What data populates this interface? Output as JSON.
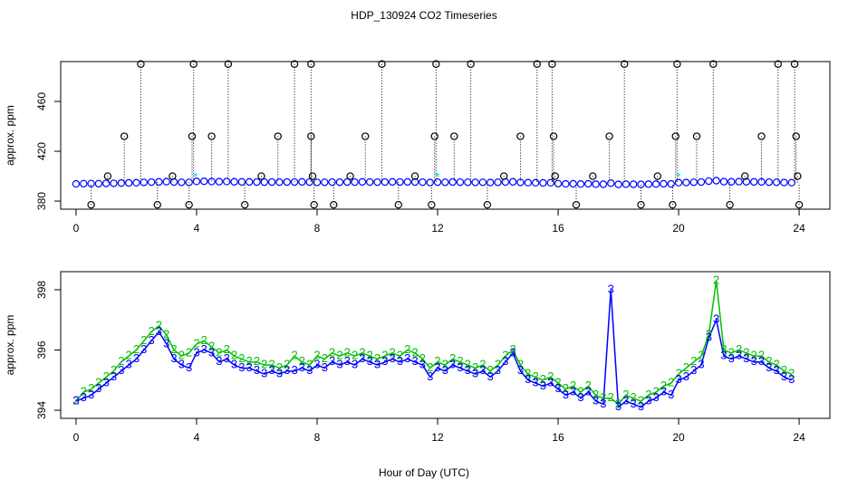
{
  "chart_data": [
    {
      "type": "scatter",
      "title": "HDP_130924  CO2 Timeseries",
      "y_label": "approx. ppm",
      "xlim": [
        -0.51,
        25.02
      ],
      "xticks": [
        0,
        4,
        8,
        12,
        16,
        20,
        24
      ],
      "ylim": [
        373.5,
        492
      ],
      "yticks": [
        380,
        420,
        460
      ],
      "series": [
        {
          "color": "#0000ff",
          "marker": "circle",
          "x": [
            0,
            0.25,
            0.5,
            0.75,
            1,
            1.25,
            1.5,
            1.75,
            2,
            2.25,
            2.5,
            2.75,
            3,
            3.25,
            3.5,
            3.75,
            4,
            4.25,
            4.5,
            4.75,
            5,
            5.25,
            5.5,
            5.75,
            6,
            6.25,
            6.5,
            6.75,
            7,
            7.25,
            7.5,
            7.75,
            8,
            8.25,
            8.5,
            8.75,
            9,
            9.25,
            9.5,
            9.75,
            10,
            10.25,
            10.5,
            10.75,
            11,
            11.25,
            11.5,
            11.75,
            12,
            12.25,
            12.5,
            12.75,
            13,
            13.25,
            13.5,
            13.75,
            14,
            14.25,
            14.5,
            14.75,
            15,
            15.25,
            15.5,
            15.75,
            16,
            16.25,
            16.5,
            16.75,
            17,
            17.25,
            17.5,
            17.75,
            18,
            18.25,
            18.5,
            18.75,
            19,
            19.25,
            19.5,
            19.75,
            20,
            20.25,
            20.5,
            20.75,
            21,
            21.25,
            21.5,
            21.75,
            22,
            22.25,
            22.5,
            22.75,
            23,
            23.25,
            23.5,
            23.75
          ],
          "values": [
            393.8,
            394.0,
            394.1,
            394.0,
            394.2,
            394.3,
            394.5,
            394.6,
            394.7,
            395.0,
            395.2,
            395.4,
            395.6,
            395.3,
            395.1,
            395.0,
            395.8,
            395.9,
            395.7,
            395.6,
            395.7,
            395.5,
            395.4,
            395.4,
            395.3,
            395.2,
            395.3,
            395.2,
            395.3,
            395.3,
            395.4,
            395.3,
            395.0,
            395.1,
            395.2,
            395.2,
            395.3,
            395.2,
            395.4,
            395.3,
            395.2,
            395.3,
            395.4,
            395.3,
            395.4,
            395.3,
            395.2,
            394.9,
            395.2,
            395.1,
            395.3,
            395.2,
            395.1,
            395.0,
            395.1,
            394.9,
            395.1,
            395.3,
            395.5,
            395.0,
            394.8,
            394.7,
            394.6,
            394.7,
            394.0,
            393.8,
            393.9,
            393.7,
            393.9,
            393.6,
            393.5,
            394.4,
            393.4,
            393.6,
            393.5,
            393.4,
            393.6,
            393.7,
            393.9,
            393.8,
            394.8,
            394.9,
            395.1,
            395.3,
            396.0,
            396.4,
            395.6,
            395.5,
            395.6,
            395.5,
            395.4,
            395.4,
            395.2,
            395.1,
            394.9,
            394.8
          ]
        },
        {
          "color": "#000000",
          "marker": "circle-dotted",
          "x": [
            0.5,
            1.05,
            1.6,
            2.15,
            2.7,
            3.2,
            3.75,
            3.85,
            3.9,
            4.5,
            5.05,
            5.6,
            6.15,
            6.7,
            7.25,
            7.8,
            7.8,
            7.85,
            7.9,
            8.55,
            9.1,
            9.6,
            10.15,
            10.7,
            11.25,
            11.8,
            11.9,
            11.95,
            12.55,
            13.1,
            13.65,
            14.2,
            14.75,
            15.3,
            15.8,
            15.85,
            15.9,
            16.6,
            17.15,
            17.7,
            18.2,
            18.75,
            19.3,
            19.8,
            19.9,
            19.95,
            20.6,
            21.15,
            21.7,
            22.2,
            22.75,
            23.3,
            23.85,
            23.9,
            23.95,
            24
          ],
          "values": [
            377,
            400,
            432,
            490,
            377,
            400,
            377,
            432,
            490,
            432,
            490,
            377,
            400,
            432,
            490,
            490,
            432,
            400,
            377,
            377,
            400,
            432,
            490,
            377,
            400,
            377,
            432,
            490,
            432,
            490,
            377,
            400,
            432,
            490,
            490,
            432,
            400,
            377,
            400,
            432,
            490,
            377,
            400,
            377,
            432,
            490,
            432,
            490,
            377,
            400,
            432,
            490,
            490,
            432,
            400,
            377
          ]
        },
        {
          "color": "#00e5ee",
          "marker": "star",
          "x": [
            3.97,
            12.0,
            20.0
          ],
          "values": [
            401,
            401,
            401
          ]
        }
      ]
    },
    {
      "type": "line",
      "y_label": "approx. ppm",
      "x_label": "Hour of Day (UTC)",
      "xlim": [
        -0.51,
        25.02
      ],
      "xticks": [
        0,
        4,
        8,
        12,
        16,
        20,
        24
      ],
      "ylim": [
        393.73,
        398.6
      ],
      "yticks": [
        394,
        396,
        398
      ],
      "x": [
        0,
        0.25,
        0.5,
        0.75,
        1,
        1.25,
        1.5,
        1.75,
        2,
        2.25,
        2.5,
        2.75,
        3,
        3.25,
        3.5,
        3.75,
        4,
        4.25,
        4.5,
        4.75,
        5,
        5.25,
        5.5,
        5.75,
        6,
        6.25,
        6.5,
        6.75,
        7,
        7.25,
        7.5,
        7.75,
        8,
        8.25,
        8.5,
        8.75,
        9,
        9.25,
        9.5,
        9.75,
        10,
        10.25,
        10.5,
        10.75,
        11,
        11.25,
        11.5,
        11.75,
        12,
        12.25,
        12.5,
        12.75,
        13,
        13.25,
        13.5,
        13.75,
        14,
        14.25,
        14.5,
        14.75,
        15,
        15.25,
        15.5,
        15.75,
        16,
        16.25,
        16.5,
        16.75,
        17,
        17.25,
        17.5,
        17.75,
        18,
        18.25,
        18.5,
        18.75,
        19,
        19.25,
        19.5,
        19.75,
        20,
        20.25,
        20.5,
        20.75,
        21,
        21.25,
        21.5,
        21.75,
        22,
        22.25,
        22.5,
        22.75,
        23,
        23.25,
        23.5,
        23.75
      ],
      "series": [
        {
          "marker": "2",
          "color": "#00c000",
          "values": [
            394.3,
            394.6,
            394.7,
            394.9,
            395.1,
            395.3,
            395.6,
            395.8,
            396.0,
            396.3,
            396.6,
            396.8,
            396.5,
            396.0,
            395.8,
            395.9,
            396.2,
            396.3,
            396.1,
            395.9,
            396.0,
            395.8,
            395.7,
            395.6,
            395.6,
            395.5,
            395.5,
            395.4,
            395.5,
            395.8,
            395.6,
            395.5,
            395.8,
            395.7,
            395.9,
            395.8,
            395.9,
            395.8,
            395.9,
            395.8,
            395.7,
            395.8,
            395.9,
            395.8,
            396.0,
            395.9,
            395.7,
            395.4,
            395.6,
            395.5,
            395.7,
            395.6,
            395.5,
            395.4,
            395.5,
            395.3,
            395.5,
            395.8,
            396.0,
            395.5,
            395.2,
            395.1,
            395.0,
            395.1,
            394.9,
            394.7,
            394.8,
            394.6,
            394.8,
            394.5,
            394.4,
            394.4,
            394.2,
            394.5,
            394.4,
            394.3,
            394.5,
            394.6,
            394.8,
            394.9,
            395.2,
            395.4,
            395.6,
            395.8,
            396.5,
            398.3,
            396.0,
            395.9,
            396.0,
            395.9,
            395.8,
            395.8,
            395.6,
            395.5,
            395.3,
            395.2
          ]
        },
        {
          "marker": "3",
          "color": "#0000ff",
          "values": [
            394.3,
            394.4,
            394.5,
            394.7,
            394.9,
            395.1,
            395.3,
            395.5,
            395.7,
            396.0,
            396.3,
            396.6,
            396.2,
            395.7,
            395.5,
            395.4,
            395.9,
            396.0,
            395.9,
            395.6,
            395.7,
            395.5,
            395.4,
            395.4,
            395.3,
            395.2,
            395.3,
            395.2,
            395.3,
            395.3,
            395.4,
            395.3,
            395.5,
            395.4,
            395.6,
            395.5,
            395.6,
            395.5,
            395.7,
            395.6,
            395.5,
            395.6,
            395.7,
            395.6,
            395.7,
            395.6,
            395.5,
            395.1,
            395.4,
            395.3,
            395.5,
            395.4,
            395.3,
            395.2,
            395.3,
            395.1,
            395.3,
            395.6,
            395.9,
            395.3,
            395.0,
            394.9,
            394.8,
            394.9,
            394.7,
            394.5,
            394.6,
            394.4,
            394.6,
            394.3,
            394.2,
            398.0,
            394.1,
            394.3,
            394.2,
            394.1,
            394.3,
            394.4,
            394.6,
            394.5,
            395.0,
            395.1,
            395.3,
            395.5,
            396.4,
            397.0,
            395.8,
            395.7,
            395.8,
            395.7,
            395.6,
            395.6,
            395.4,
            395.3,
            395.1,
            395.0
          ]
        }
      ]
    }
  ]
}
